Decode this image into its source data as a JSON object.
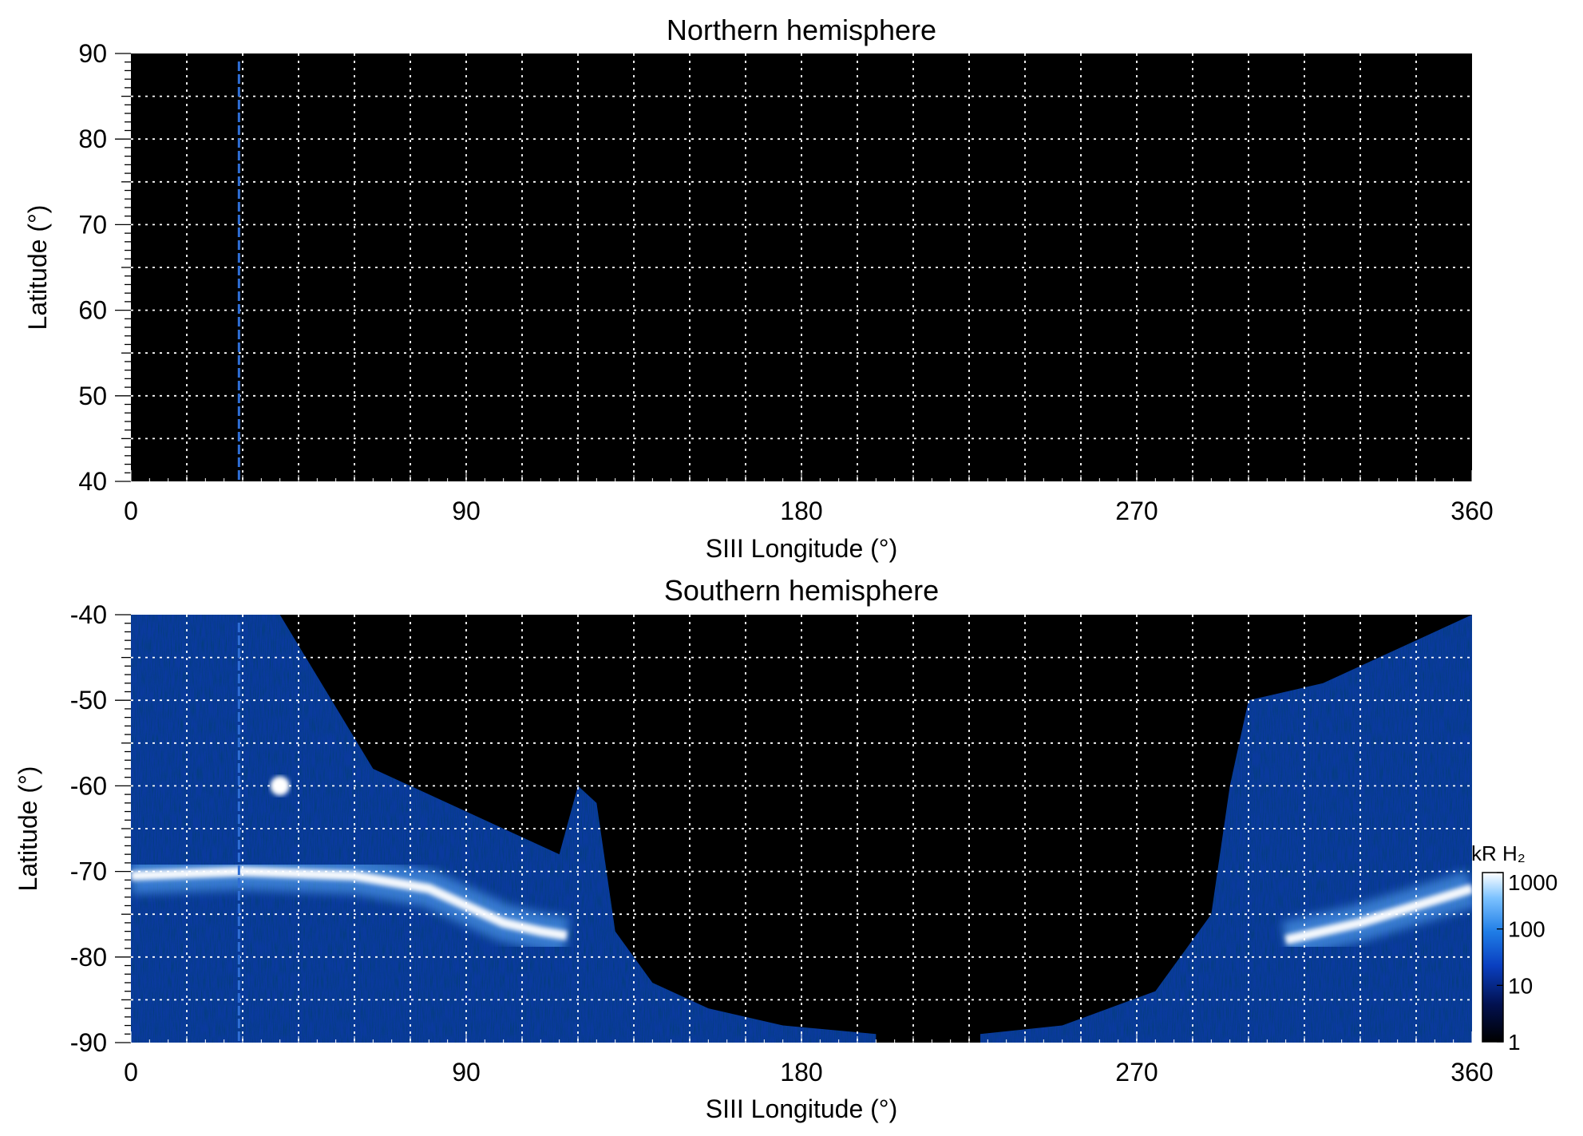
{
  "chart_data": [
    {
      "type": "heatmap",
      "title": "Northern hemisphere",
      "xlabel": "SIII Longitude (°)",
      "ylabel": "Latitude (°)",
      "xlim": [
        0,
        360
      ],
      "ylim": [
        40,
        90
      ],
      "xticks": [
        "0",
        "90",
        "180",
        "270",
        "360"
      ],
      "xtick_values": [
        0,
        90,
        180,
        270,
        360
      ],
      "yticks": [
        "40",
        "50",
        "60",
        "70",
        "80",
        "90"
      ],
      "ytick_values": [
        40,
        50,
        60,
        70,
        80,
        90
      ],
      "grid": true,
      "grid_x_spacing": 15,
      "grid_y_spacing": 5,
      "background_color": "#000000",
      "marker_longitude": 29,
      "marker_color": "#2f6fd6",
      "intensity": "none"
    },
    {
      "type": "heatmap",
      "title": "Southern hemisphere",
      "xlabel": "SIII Longitude (°)",
      "ylabel": "Latitude (°)",
      "xlim": [
        0,
        360
      ],
      "ylim": [
        -90,
        -40
      ],
      "xticks": [
        "0",
        "90",
        "180",
        "270",
        "360"
      ],
      "xtick_values": [
        0,
        90,
        180,
        270,
        360
      ],
      "yticks": [
        "-40",
        "-50",
        "-60",
        "-70",
        "-80",
        "-90"
      ],
      "ytick_values": [
        -40,
        -50,
        -60,
        -70,
        -80,
        -90
      ],
      "grid": true,
      "grid_x_spacing": 15,
      "grid_y_spacing": 5,
      "background_color": "#000000",
      "marker_longitude": 29,
      "marker_color": "#2f6fd6",
      "emission_boundary": {
        "left_lon": [
          0,
          40,
          65,
          100,
          115,
          120,
          125,
          130,
          140,
          155,
          175,
          200
        ],
        "left_lat": [
          -40,
          -40,
          -58,
          -65,
          -68,
          -60,
          -62,
          -77,
          -83,
          -86,
          -88,
          -89
        ],
        "right_lon": [
          228,
          250,
          275,
          290,
          295,
          300,
          320,
          360
        ],
        "right_lat": [
          -89,
          -88,
          -84,
          -75,
          -60,
          -50,
          -48,
          -40
        ]
      },
      "auroral_oval": {
        "lon": [
          0,
          30,
          60,
          80,
          100,
          110,
          117,
          310,
          330,
          360
        ],
        "lat": [
          -70.5,
          -70,
          -70.5,
          -72,
          -76,
          -77,
          -77.5,
          -78,
          -76,
          -72
        ]
      },
      "bright_spot": {
        "lon": 40,
        "lat": -60
      }
    }
  ],
  "colorbar": {
    "label": "kR H₂",
    "scale": "log",
    "range": [
      1,
      1000
    ],
    "ticks": [
      "1",
      "10",
      "100",
      "1000"
    ],
    "tick_values": [
      1,
      10,
      100,
      1000
    ],
    "colors": [
      "#000000",
      "#021150",
      "#0a3fc0",
      "#1f7de6",
      "#7cc2ff",
      "#ffffff"
    ]
  }
}
